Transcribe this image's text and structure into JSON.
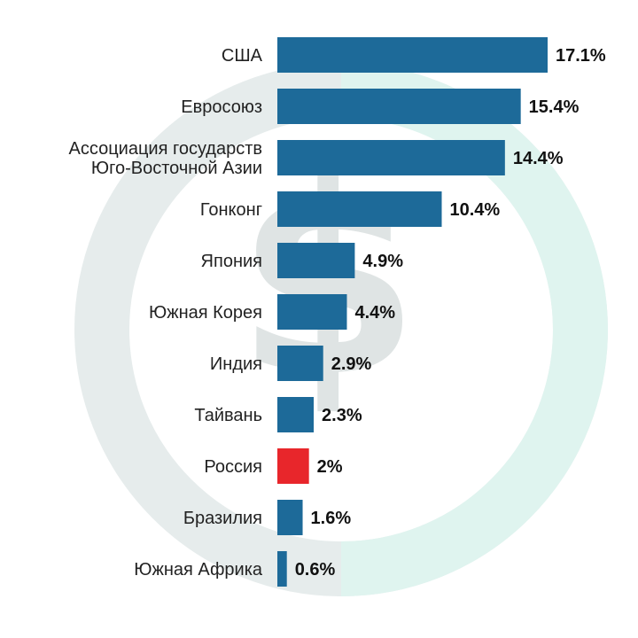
{
  "chart_data": {
    "type": "bar",
    "orientation": "horizontal",
    "title": "",
    "xlabel": "",
    "ylabel": "",
    "xlim": [
      0,
      17.1
    ],
    "grid": false,
    "legend": "none",
    "categories": [
      [
        "США"
      ],
      [
        "Евросоюз"
      ],
      [
        "Ассоциация государств",
        "Юго-Восточной Азии"
      ],
      [
        "Гонконг"
      ],
      [
        "Япония"
      ],
      [
        "Южная Корея"
      ],
      [
        "Индия"
      ],
      [
        "Тайвань"
      ],
      [
        "Россия"
      ],
      [
        "Бразилия"
      ],
      [
        "Южная Африка"
      ]
    ],
    "values": [
      17.1,
      15.4,
      14.4,
      10.4,
      4.9,
      4.4,
      2.9,
      2.3,
      2,
      1.6,
      0.6
    ],
    "value_labels": [
      "17.1%",
      "15.4%",
      "14.4%",
      "10.4%",
      "4.9%",
      "4.4%",
      "2.9%",
      "2.3%",
      "2%",
      "1.6%",
      "0.6%"
    ],
    "highlight": {
      "category": "Россия",
      "color": "#e8262b"
    },
    "colors": {
      "bar": "#1d6a99",
      "label": "#222222",
      "value": "#111111",
      "highlight": "#e8262b",
      "ring_gray": "#e6ecec",
      "ring_teal": "#dff4ef",
      "dollar": "#dfe4e4"
    },
    "background_icon": "dollar-ring-icon"
  }
}
